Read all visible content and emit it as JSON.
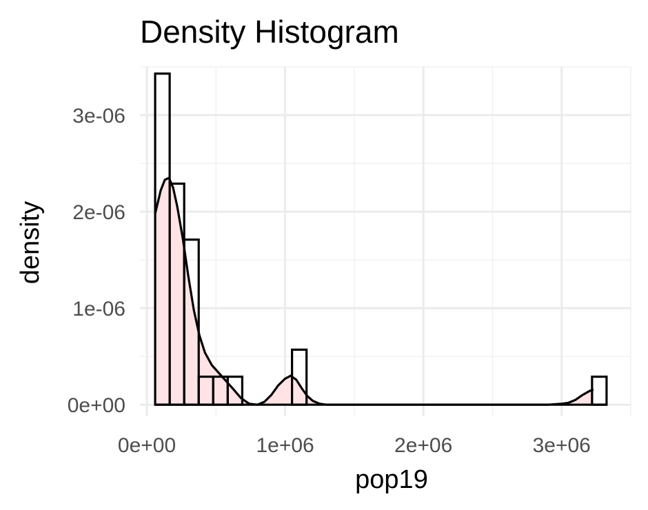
{
  "chart_data": {
    "type": "bar",
    "subtype": "histogram-with-density",
    "title": "Density Histogram",
    "xlabel": "pop19",
    "ylabel": "density",
    "xlim": [
      -50000,
      3500000
    ],
    "ylim": [
      -1.2e-07,
      3.5e-06
    ],
    "x_ticks": [
      0,
      1000000,
      2000000,
      3000000
    ],
    "x_tick_labels": [
      "0e+00",
      "1e+06",
      "2e+06",
      "3e+06"
    ],
    "y_ticks": [
      0,
      1e-06,
      2e-06,
      3e-06
    ],
    "y_tick_labels": [
      "0e+00",
      "1e-06",
      "2e-06",
      "3e-06"
    ],
    "bin_width": 105000,
    "bins": [
      {
        "x0": 60000,
        "x1": 165000,
        "density": 3.43e-06
      },
      {
        "x0": 165000,
        "x1": 270000,
        "density": 2.29e-06
      },
      {
        "x0": 270000,
        "x1": 375000,
        "density": 1.71e-06
      },
      {
        "x0": 375000,
        "x1": 480000,
        "density": 2.9e-07
      },
      {
        "x0": 480000,
        "x1": 585000,
        "density": 2.9e-07
      },
      {
        "x0": 585000,
        "x1": 690000,
        "density": 2.9e-07
      },
      {
        "x0": 1050000,
        "x1": 1155000,
        "density": 5.7e-07
      },
      {
        "x0": 3220000,
        "x1": 3325000,
        "density": 2.9e-07
      }
    ],
    "density_curve": {
      "x": [
        60000,
        80000,
        100000,
        130000,
        160000,
        190000,
        220000,
        260000,
        300000,
        340000,
        380000,
        420000,
        470000,
        520000,
        570000,
        620000,
        680000,
        740000,
        800000,
        850000,
        900000,
        950000,
        1000000,
        1040000,
        1080000,
        1120000,
        1160000,
        1200000,
        1250000,
        1300000,
        1350000,
        1400000,
        1500000,
        2000000,
        2500000,
        2900000,
        3000000,
        3050000,
        3100000,
        3150000,
        3200000,
        3230000
      ],
      "y": [
        1.98e-06,
        2.1e-06,
        2.22e-06,
        2.33e-06,
        2.35e-06,
        2.25e-06,
        2.05e-06,
        1.72e-06,
        1.33e-06,
        9.8e-07,
        7.2e-07,
        5.4e-07,
        4.1e-07,
        3.3e-07,
        2.5e-07,
        1.7e-07,
        7e-08,
        1e-08,
        0,
        3e-08,
        1e-07,
        2e-07,
        2.7e-07,
        3e-07,
        2.6e-07,
        1.7e-07,
        9e-08,
        4e-08,
        1e-08,
        0,
        0,
        0,
        0,
        0,
        0,
        0,
        1e-08,
        2e-08,
        5e-08,
        1e-07,
        1.4e-07,
        1.6e-07
      ]
    },
    "grid": true,
    "colors": {
      "fill": "#ffe3e5",
      "outline": "#000000",
      "grid": "#ebebeb"
    }
  }
}
